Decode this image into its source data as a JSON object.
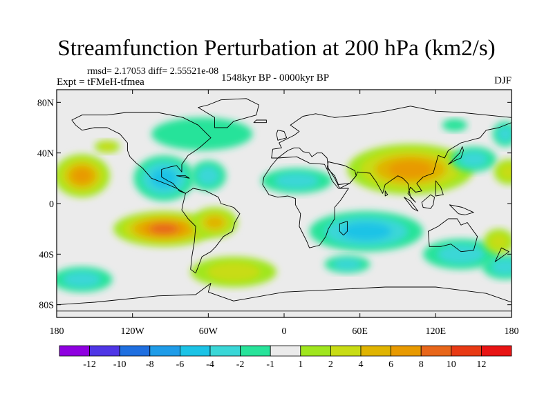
{
  "title": "Streamfunction Perturbation at 200 hPa (km2/s)",
  "stats": "rmsd= 2.17053  diff= 2.55521e-08",
  "experiment": "Expt = tFMeH-tfmea",
  "period": "1548kyr BP - 0000kyr BP",
  "season": "DJF",
  "map": {
    "projection": "cylindrical equidistant",
    "lon_range": [
      -180,
      180
    ],
    "lat_range": [
      -90,
      90
    ],
    "lat_ticks": [
      {
        "value": 80,
        "label": "80N"
      },
      {
        "value": 40,
        "label": "40N"
      },
      {
        "value": 0,
        "label": "0"
      },
      {
        "value": -40,
        "label": "40S"
      },
      {
        "value": -80,
        "label": "80S"
      }
    ],
    "lon_ticks": [
      {
        "value": -180,
        "label": "180"
      },
      {
        "value": -120,
        "label": "120W"
      },
      {
        "value": -60,
        "label": "60W"
      },
      {
        "value": 0,
        "label": "0"
      },
      {
        "value": 60,
        "label": "60E"
      },
      {
        "value": 120,
        "label": "120E"
      },
      {
        "value": 180,
        "label": "180"
      }
    ],
    "background_color": "#ebebeb",
    "anomalies": [
      {
        "lon": -160,
        "lat": 22,
        "rx": 22,
        "ry": 17,
        "value": 6
      },
      {
        "lon": -95,
        "lat": 20,
        "rx": 24,
        "ry": 18,
        "value": -5
      },
      {
        "lon": -60,
        "lat": 22,
        "rx": 14,
        "ry": 12,
        "value": -3
      },
      {
        "lon": -95,
        "lat": -20,
        "rx": 40,
        "ry": 14,
        "value": 9
      },
      {
        "lon": -55,
        "lat": -15,
        "rx": 18,
        "ry": 12,
        "value": 4
      },
      {
        "lon": -160,
        "lat": -60,
        "rx": 24,
        "ry": 10,
        "value": -3
      },
      {
        "lon": -40,
        "lat": -54,
        "rx": 34,
        "ry": 12,
        "value": 3
      },
      {
        "lon": -65,
        "lat": 55,
        "rx": 40,
        "ry": 13,
        "value": -1.5
      },
      {
        "lon": 10,
        "lat": 18,
        "rx": 28,
        "ry": 10,
        "value": -2
      },
      {
        "lon": 50,
        "lat": -48,
        "rx": 18,
        "ry": 7,
        "value": -2
      },
      {
        "lon": 65,
        "lat": -22,
        "rx": 45,
        "ry": 16,
        "value": -4
      },
      {
        "lon": 140,
        "lat": -40,
        "rx": 30,
        "ry": 12,
        "value": -2
      },
      {
        "lon": 100,
        "lat": 27,
        "rx": 50,
        "ry": 20,
        "value": 7
      },
      {
        "lon": 150,
        "lat": 35,
        "rx": 18,
        "ry": 10,
        "value": -2
      },
      {
        "lon": 178,
        "lat": 25,
        "rx": 12,
        "ry": 10,
        "value": 3
      },
      {
        "lon": 175,
        "lat": -50,
        "rx": 18,
        "ry": 10,
        "value": -2
      },
      {
        "lon": -140,
        "lat": 45,
        "rx": 10,
        "ry": 5,
        "value": 2
      },
      {
        "lon": 135,
        "lat": 62,
        "rx": 10,
        "ry": 5,
        "value": -1.5
      },
      {
        "lon": 175,
        "lat": 55,
        "rx": 10,
        "ry": 10,
        "value": -2
      },
      {
        "lon": 170,
        "lat": -30,
        "rx": 12,
        "ry": 10,
        "value": 2
      }
    ]
  },
  "colorbar": {
    "colors": [
      "#8f00e0",
      "#4f36e6",
      "#1f6fe0",
      "#1f9ce8",
      "#1cc3e6",
      "#3ad7d7",
      "#28e39a",
      "#ebebeb",
      "#a0e61e",
      "#c8dc14",
      "#e0b400",
      "#e89a00",
      "#e8661a",
      "#e83a14",
      "#e81414"
    ],
    "labels": [
      "-12",
      "-10",
      "-8",
      "-6",
      "-4",
      "-2",
      "-1",
      "1",
      "2",
      "4",
      "6",
      "8",
      "10",
      "12"
    ],
    "levels": [
      -12,
      -10,
      -8,
      -6,
      -4,
      -2,
      -1,
      1,
      2,
      4,
      6,
      8,
      10,
      12
    ]
  },
  "continents": [
    {
      "name": "North America",
      "coords": [
        [
          -168,
          66
        ],
        [
          -160,
          70
        ],
        [
          -140,
          70
        ],
        [
          -125,
          72
        ],
        [
          -100,
          72
        ],
        [
          -80,
          68
        ],
        [
          -68,
          62
        ],
        [
          -64,
          58
        ],
        [
          -58,
          52
        ],
        [
          -66,
          45
        ],
        [
          -70,
          42
        ],
        [
          -76,
          38
        ],
        [
          -81,
          31
        ],
        [
          -81,
          25
        ],
        [
          -85,
          30
        ],
        [
          -90,
          29
        ],
        [
          -97,
          27
        ],
        [
          -97,
          21
        ],
        [
          -92,
          18
        ],
        [
          -88,
          16
        ],
        [
          -83,
          10
        ],
        [
          -78,
          8
        ],
        [
          -85,
          12
        ],
        [
          -92,
          15
        ],
        [
          -105,
          20
        ],
        [
          -112,
          28
        ],
        [
          -117,
          32
        ],
        [
          -122,
          37
        ],
        [
          -124,
          42
        ],
        [
          -124,
          48
        ],
        [
          -130,
          55
        ],
        [
          -140,
          60
        ],
        [
          -150,
          60
        ],
        [
          -160,
          58
        ],
        [
          -165,
          62
        ],
        [
          -168,
          66
        ]
      ]
    },
    {
      "name": "Greenland",
      "coords": [
        [
          -55,
          60
        ],
        [
          -45,
          60
        ],
        [
          -40,
          65
        ],
        [
          -22,
          70
        ],
        [
          -20,
          78
        ],
        [
          -30,
          83
        ],
        [
          -50,
          82
        ],
        [
          -60,
          78
        ],
        [
          -68,
          76
        ],
        [
          -55,
          68
        ],
        [
          -55,
          60
        ]
      ]
    },
    {
      "name": "South America",
      "coords": [
        [
          -78,
          8
        ],
        [
          -72,
          12
        ],
        [
          -62,
          10
        ],
        [
          -52,
          5
        ],
        [
          -50,
          0
        ],
        [
          -40,
          -3
        ],
        [
          -35,
          -8
        ],
        [
          -39,
          -15
        ],
        [
          -41,
          -22
        ],
        [
          -48,
          -26
        ],
        [
          -54,
          -34
        ],
        [
          -58,
          -38
        ],
        [
          -65,
          -42
        ],
        [
          -68,
          -50
        ],
        [
          -70,
          -55
        ],
        [
          -74,
          -52
        ],
        [
          -73,
          -42
        ],
        [
          -71,
          -30
        ],
        [
          -70,
          -18
        ],
        [
          -76,
          -12
        ],
        [
          -81,
          -5
        ],
        [
          -80,
          0
        ],
        [
          -78,
          8
        ]
      ]
    },
    {
      "name": "Africa",
      "coords": [
        [
          -17,
          15
        ],
        [
          -16,
          21
        ],
        [
          -10,
          30
        ],
        [
          -5,
          36
        ],
        [
          10,
          37
        ],
        [
          20,
          32
        ],
        [
          32,
          31
        ],
        [
          35,
          25
        ],
        [
          38,
          18
        ],
        [
          43,
          12
        ],
        [
          51,
          12
        ],
        [
          45,
          3
        ],
        [
          40,
          -3
        ],
        [
          40,
          -12
        ],
        [
          35,
          -20
        ],
        [
          33,
          -26
        ],
        [
          28,
          -33
        ],
        [
          20,
          -35
        ],
        [
          18,
          -30
        ],
        [
          12,
          -18
        ],
        [
          13,
          -8
        ],
        [
          9,
          -1
        ],
        [
          9,
          4
        ],
        [
          3,
          6
        ],
        [
          -5,
          5
        ],
        [
          -12,
          7
        ],
        [
          -17,
          15
        ]
      ]
    },
    {
      "name": "Madagascar",
      "coords": [
        [
          44,
          -16
        ],
        [
          50,
          -14
        ],
        [
          50,
          -22
        ],
        [
          47,
          -25
        ],
        [
          44,
          -22
        ],
        [
          44,
          -16
        ]
      ]
    },
    {
      "name": "Eurasia",
      "coords": [
        [
          -10,
          36
        ],
        [
          -9,
          43
        ],
        [
          -2,
          44
        ],
        [
          -4,
          48
        ],
        [
          2,
          51
        ],
        [
          8,
          54
        ],
        [
          12,
          57
        ],
        [
          5,
          62
        ],
        [
          15,
          69
        ],
        [
          25,
          71
        ],
        [
          40,
          68
        ],
        [
          60,
          70
        ],
        [
          80,
          73
        ],
        [
          100,
          77
        ],
        [
          120,
          73
        ],
        [
          140,
          72
        ],
        [
          160,
          70
        ],
        [
          180,
          68
        ],
        [
          180,
          64
        ],
        [
          170,
          60
        ],
        [
          160,
          58
        ],
        [
          155,
          52
        ],
        [
          140,
          48
        ],
        [
          130,
          42
        ],
        [
          127,
          36
        ],
        [
          122,
          38
        ],
        [
          120,
          31
        ],
        [
          118,
          24
        ],
        [
          110,
          21
        ],
        [
          105,
          16
        ],
        [
          109,
          10
        ],
        [
          104,
          9
        ],
        [
          100,
          13
        ],
        [
          98,
          8
        ],
        [
          104,
          1
        ],
        [
          100,
          5
        ],
        [
          98,
          16
        ],
        [
          94,
          20
        ],
        [
          90,
          22
        ],
        [
          80,
          15
        ],
        [
          78,
          8
        ],
        [
          73,
          17
        ],
        [
          68,
          24
        ],
        [
          58,
          25
        ],
        [
          57,
          22
        ],
        [
          52,
          16
        ],
        [
          44,
          12
        ],
        [
          40,
          20
        ],
        [
          35,
          28
        ],
        [
          34,
          36
        ],
        [
          30,
          40
        ],
        [
          26,
          40
        ],
        [
          22,
          37
        ],
        [
          20,
          40
        ],
        [
          15,
          41
        ],
        [
          12,
          44
        ],
        [
          8,
          44
        ],
        [
          3,
          42
        ],
        [
          -5,
          36
        ],
        [
          -10,
          36
        ]
      ]
    },
    {
      "name": "Arabia",
      "coords": [
        [
          34,
          28
        ],
        [
          40,
          22
        ],
        [
          43,
          15
        ],
        [
          52,
          16
        ],
        [
          57,
          22
        ],
        [
          56,
          26
        ],
        [
          50,
          29
        ],
        [
          48,
          30
        ],
        [
          35,
          33
        ],
        [
          34,
          28
        ]
      ]
    },
    {
      "name": "Australia",
      "coords": [
        [
          114,
          -22
        ],
        [
          122,
          -18
        ],
        [
          130,
          -12
        ],
        [
          137,
          -12
        ],
        [
          140,
          -17
        ],
        [
          145,
          -15
        ],
        [
          153,
          -26
        ],
        [
          150,
          -37
        ],
        [
          140,
          -38
        ],
        [
          132,
          -32
        ],
        [
          124,
          -34
        ],
        [
          115,
          -34
        ],
        [
          114,
          -22
        ]
      ]
    },
    {
      "name": "Antarctica",
      "coords": [
        [
          -180,
          -80
        ],
        [
          -150,
          -78
        ],
        [
          -100,
          -73
        ],
        [
          -70,
          -72
        ],
        [
          -58,
          -63
        ],
        [
          -60,
          -70
        ],
        [
          -40,
          -77
        ],
        [
          0,
          -70
        ],
        [
          40,
          -68
        ],
        [
          80,
          -66
        ],
        [
          120,
          -66
        ],
        [
          160,
          -71
        ],
        [
          180,
          -78
        ],
        [
          180,
          -85
        ],
        [
          -180,
          -85
        ],
        [
          -180,
          -80
        ]
      ]
    },
    {
      "name": "Great Britain",
      "coords": [
        [
          -5,
          50
        ],
        [
          2,
          52
        ],
        [
          0,
          57
        ],
        [
          -5,
          58
        ],
        [
          -6,
          55
        ],
        [
          -5,
          50
        ]
      ]
    },
    {
      "name": "Japan",
      "coords": [
        [
          130,
          31
        ],
        [
          135,
          34
        ],
        [
          140,
          36
        ],
        [
          142,
          42
        ],
        [
          141,
          45
        ],
        [
          139,
          40
        ],
        [
          133,
          34
        ],
        [
          130,
          31
        ]
      ]
    },
    {
      "name": "Indonesia Borneo",
      "coords": [
        [
          109,
          1
        ],
        [
          116,
          7
        ],
        [
          119,
          5
        ],
        [
          118,
          -1
        ],
        [
          116,
          -4
        ],
        [
          110,
          -3
        ],
        [
          109,
          1
        ]
      ]
    },
    {
      "name": "Sumatra",
      "coords": [
        [
          95,
          5
        ],
        [
          100,
          2
        ],
        [
          106,
          -6
        ],
        [
          102,
          -4
        ],
        [
          95,
          5
        ]
      ]
    },
    {
      "name": "New Guinea",
      "coords": [
        [
          131,
          -1
        ],
        [
          141,
          -3
        ],
        [
          150,
          -7
        ],
        [
          143,
          -9
        ],
        [
          138,
          -8
        ],
        [
          131,
          -1
        ]
      ]
    },
    {
      "name": "New Zealand",
      "coords": [
        [
          172,
          -35
        ],
        [
          178,
          -38
        ],
        [
          174,
          -41
        ],
        [
          167,
          -46
        ],
        [
          172,
          -35
        ]
      ]
    },
    {
      "name": "Iceland",
      "coords": [
        [
          -24,
          64
        ],
        [
          -14,
          64
        ],
        [
          -14,
          66
        ],
        [
          -22,
          66
        ],
        [
          -24,
          64
        ]
      ]
    },
    {
      "name": "Cuba",
      "coords": [
        [
          -85,
          22
        ],
        [
          -75,
          20
        ],
        [
          -78,
          22
        ],
        [
          -85,
          22
        ]
      ]
    },
    {
      "name": "Sri Lanka",
      "coords": [
        [
          80,
          6
        ],
        [
          82,
          7
        ],
        [
          80,
          10
        ],
        [
          80,
          6
        ]
      ]
    },
    {
      "name": "Philippines",
      "coords": [
        [
          120,
          6
        ],
        [
          126,
          7
        ],
        [
          124,
          13
        ],
        [
          120,
          18
        ],
        [
          120,
          6
        ]
      ]
    }
  ]
}
